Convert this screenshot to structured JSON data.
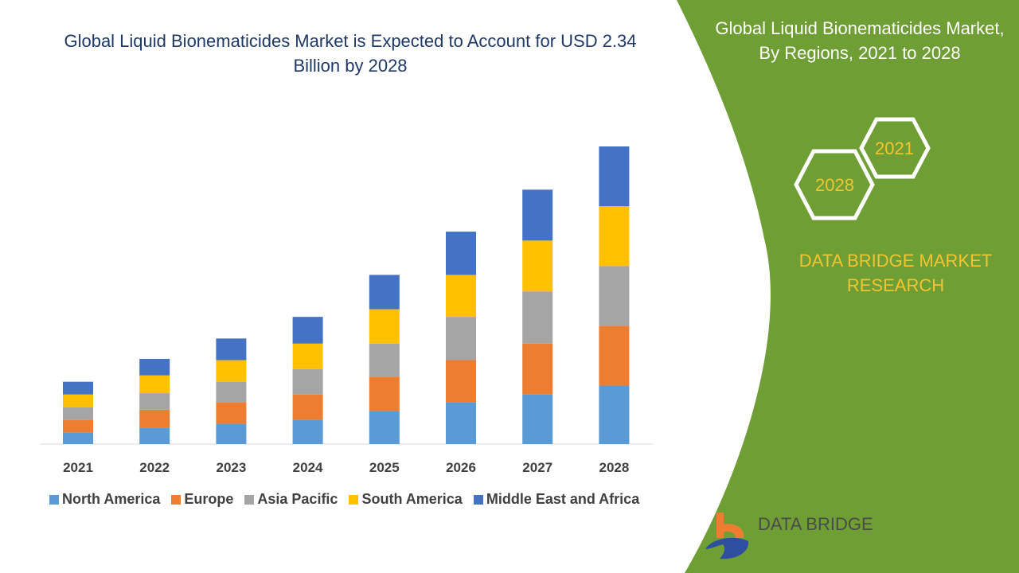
{
  "title": "Global Liquid Bionematicides Market is Expected to Account for USD 2.34 Billion by 2028",
  "side_panel": {
    "title": "Global Liquid Bionematicides Market, By Regions, 2021 to 2028",
    "hex_years": [
      "2021",
      "2028"
    ],
    "brand": "DATA BRIDGE MARKET RESEARCH",
    "logo_text": "DATA BRIDGE",
    "green": "#6f9e35"
  },
  "chart_data": {
    "type": "bar",
    "stacked": true,
    "categories": [
      "2021",
      "2022",
      "2023",
      "2024",
      "2025",
      "2026",
      "2027",
      "2028"
    ],
    "series": [
      {
        "name": "North America",
        "color": "#5b9bd5",
        "values": [
          0.09,
          0.13,
          0.16,
          0.19,
          0.26,
          0.33,
          0.39,
          0.46
        ]
      },
      {
        "name": "Europe",
        "color": "#ed7d31",
        "values": [
          0.1,
          0.14,
          0.17,
          0.2,
          0.27,
          0.33,
          0.4,
          0.47
        ]
      },
      {
        "name": "Asia Pacific",
        "color": "#a5a5a5",
        "values": [
          0.1,
          0.13,
          0.16,
          0.2,
          0.26,
          0.34,
          0.41,
          0.47
        ]
      },
      {
        "name": "South America",
        "color": "#ffc000",
        "values": [
          0.1,
          0.14,
          0.17,
          0.2,
          0.27,
          0.33,
          0.4,
          0.47
        ]
      },
      {
        "name": "Middle East and Africa",
        "color": "#4472c4",
        "values": [
          0.1,
          0.13,
          0.17,
          0.21,
          0.27,
          0.34,
          0.4,
          0.47
        ]
      }
    ],
    "ylim": [
      0,
      2.34
    ],
    "grid": false,
    "legend": "bottom"
  }
}
